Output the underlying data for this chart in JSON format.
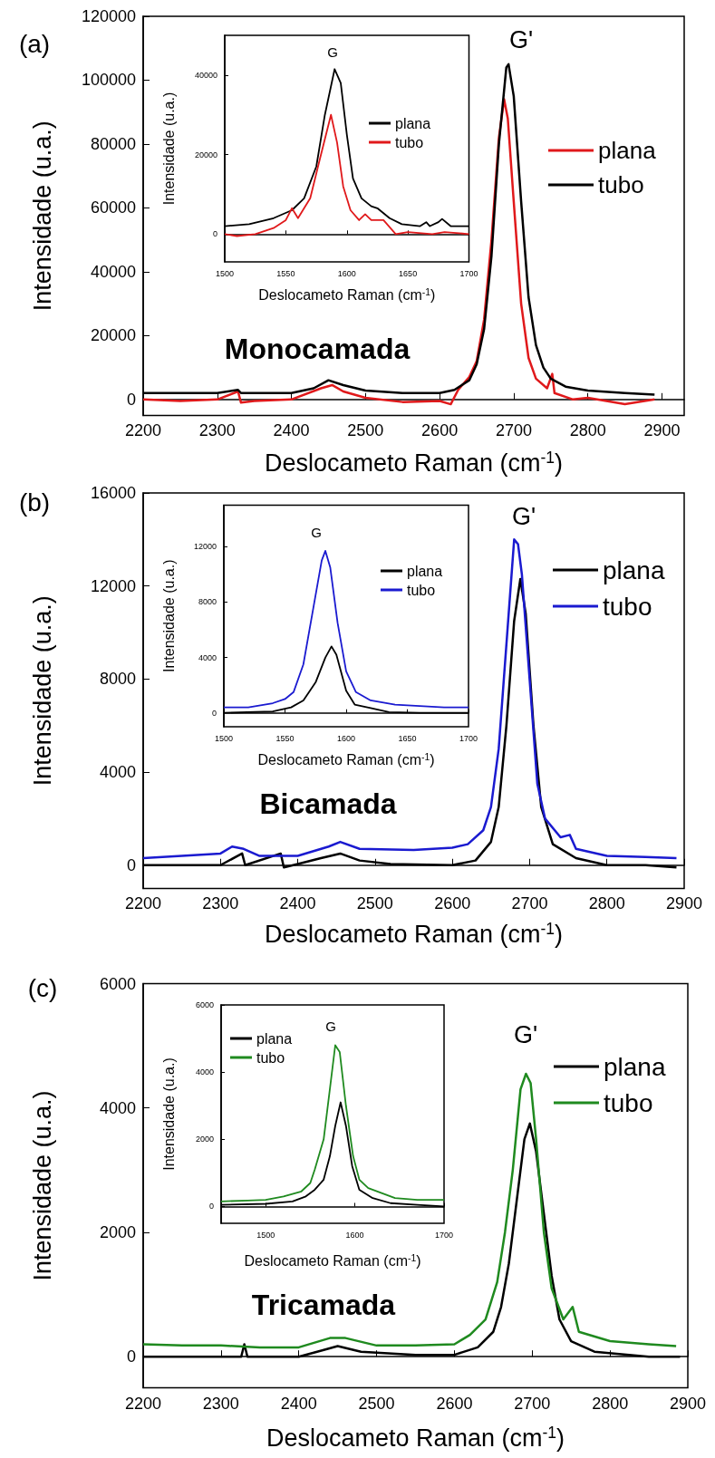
{
  "chart_data": [
    {
      "type": "line",
      "xlabel": "Deslocameto Raman (cm$^{-1}$)",
      "ylabel": "Intensidade (u.a.)",
      "xlim": [
        2200,
        2930
      ],
      "ylim": [
        -5000,
        120000
      ],
      "xticks": [
        2200,
        2300,
        2400,
        2500,
        2600,
        2700,
        2800,
        2900
      ],
      "yticks": [
        0,
        20000,
        40000,
        60000,
        80000,
        100000,
        120000
      ],
      "legend": "right",
      "annotations": [
        "(a)",
        "Monocamada",
        "G'"
      ],
      "series": [
        {
          "name": "plana",
          "color": "#e0191b",
          "x": [
            2200,
            2250,
            2300,
            2328,
            2332,
            2350,
            2400,
            2440,
            2455,
            2470,
            2500,
            2550,
            2600,
            2615,
            2625,
            2640,
            2650,
            2660,
            2670,
            2680,
            2687,
            2692,
            2700,
            2710,
            2720,
            2730,
            2745,
            2752,
            2755,
            2780,
            2800,
            2850,
            2890
          ],
          "values": [
            0,
            -500,
            0,
            2500,
            -1000,
            -500,
            0,
            3500,
            4500,
            2500,
            500,
            -800,
            -500,
            -1500,
            3000,
            7000,
            12000,
            25000,
            50000,
            82000,
            94000,
            88000,
            62000,
            30000,
            13000,
            6500,
            3500,
            8000,
            2000,
            0,
            500,
            -1500,
            0
          ]
        },
        {
          "name": "tubo",
          "color": "#000000",
          "x": [
            2200,
            2300,
            2328,
            2332,
            2400,
            2430,
            2450,
            2470,
            2500,
            2550,
            2600,
            2620,
            2640,
            2650,
            2660,
            2670,
            2680,
            2690,
            2693,
            2700,
            2710,
            2720,
            2730,
            2740,
            2750,
            2770,
            2800,
            2850,
            2890
          ],
          "values": [
            2000,
            2000,
            3000,
            2000,
            2000,
            3500,
            6000,
            4500,
            2800,
            2000,
            2000,
            3000,
            6000,
            11000,
            22000,
            45000,
            80000,
            104000,
            105000,
            95000,
            62000,
            32000,
            17000,
            10000,
            6500,
            4000,
            2800,
            2000,
            1500
          ]
        }
      ]
    },
    {
      "type": "line",
      "xlabel": "Deslocameto Raman (cm$^{-1}$)",
      "ylabel": "Intensidade (u.a.)",
      "xlim": [
        1500,
        1700
      ],
      "ylim": [
        -7000,
        50000
      ],
      "xticks": [
        1500,
        1550,
        1600,
        1650,
        1700
      ],
      "yticks": [
        0,
        20000,
        40000
      ],
      "legend": "right",
      "annotations": [
        "G"
      ],
      "series": [
        {
          "name": "plana",
          "color": "#000000",
          "x": [
            1500,
            1520,
            1540,
            1555,
            1565,
            1575,
            1582,
            1590,
            1595,
            1600,
            1605,
            1612,
            1620,
            1625,
            1635,
            1645,
            1660,
            1665,
            1668,
            1675,
            1678,
            1685,
            1700
          ],
          "values": [
            2000,
            2500,
            4000,
            6000,
            9000,
            17000,
            30000,
            41500,
            38000,
            25000,
            14000,
            9000,
            7000,
            6500,
            4000,
            2500,
            2000,
            3000,
            2000,
            3000,
            3800,
            2000,
            2000
          ]
        },
        {
          "name": "tubo",
          "color": "#e0191b",
          "x": [
            1500,
            1510,
            1525,
            1540,
            1550,
            1555,
            1560,
            1570,
            1578,
            1587,
            1592,
            1597,
            1603,
            1610,
            1615,
            1620,
            1630,
            1640,
            1650,
            1670,
            1680,
            1700
          ],
          "values": [
            0,
            -500,
            0,
            1500,
            3500,
            6500,
            4000,
            9000,
            19000,
            30000,
            23000,
            12000,
            6000,
            3500,
            5000,
            3500,
            3500,
            0,
            500,
            0,
            500,
            0
          ]
        }
      ]
    },
    {
      "type": "line",
      "xlabel": "Deslocameto Raman (cm$^{-1}$)",
      "ylabel": "Intensidade (u.a.)",
      "xlim": [
        2200,
        2900
      ],
      "ylim": [
        -1000,
        16000
      ],
      "xticks": [
        2200,
        2300,
        2400,
        2500,
        2600,
        2700,
        2800,
        2900
      ],
      "yticks": [
        0,
        4000,
        8000,
        12000,
        16000
      ],
      "legend": "right",
      "annotations": [
        "(b)",
        "Bicamada",
        "G'"
      ],
      "series": [
        {
          "name": "plana",
          "color": "#000000",
          "x": [
            2200,
            2300,
            2328,
            2332,
            2378,
            2382,
            2400,
            2430,
            2455,
            2480,
            2520,
            2600,
            2630,
            2650,
            2660,
            2670,
            2680,
            2688,
            2695,
            2705,
            2715,
            2730,
            2760,
            2800,
            2850,
            2890
          ],
          "values": [
            0,
            0,
            500,
            0,
            500,
            -100,
            50,
            300,
            500,
            200,
            50,
            0,
            200,
            1000,
            2500,
            6000,
            10500,
            12300,
            10800,
            6000,
            2500,
            900,
            300,
            0,
            0,
            -100
          ]
        },
        {
          "name": "tubo",
          "color": "#1a1ad0",
          "x": [
            2200,
            2250,
            2300,
            2315,
            2330,
            2350,
            2400,
            2440,
            2455,
            2480,
            2550,
            2600,
            2620,
            2640,
            2650,
            2660,
            2670,
            2680,
            2685,
            2690,
            2700,
            2710,
            2720,
            2740,
            2752,
            2760,
            2800,
            2850,
            2890
          ],
          "values": [
            300,
            400,
            500,
            800,
            700,
            400,
            400,
            800,
            1000,
            700,
            650,
            750,
            900,
            1500,
            2500,
            5000,
            9500,
            14000,
            13800,
            12500,
            8000,
            3500,
            2000,
            1200,
            1300,
            700,
            400,
            350,
            300
          ]
        }
      ]
    },
    {
      "type": "line",
      "xlabel": "Deslocameto Raman (cm$^{-1}$)",
      "ylabel": "Intensidade (u.a.)",
      "xlim": [
        1500,
        1700
      ],
      "ylim": [
        -1000,
        15000
      ],
      "xticks": [
        1500,
        1550,
        1600,
        1650,
        1700
      ],
      "yticks": [
        0,
        4000,
        8000,
        12000
      ],
      "legend": "right",
      "annotations": [
        "G"
      ],
      "series": [
        {
          "name": "plana",
          "color": "#000000",
          "x": [
            1500,
            1540,
            1555,
            1565,
            1575,
            1583,
            1588,
            1592,
            1600,
            1607,
            1620,
            1635,
            1660,
            1700
          ],
          "values": [
            0,
            100,
            400,
            900,
            2200,
            4000,
            4800,
            4200,
            1600,
            600,
            350,
            50,
            0,
            0
          ]
        },
        {
          "name": "tubo",
          "color": "#1a1ad0",
          "x": [
            1500,
            1520,
            1540,
            1550,
            1557,
            1565,
            1573,
            1580,
            1583,
            1587,
            1593,
            1600,
            1608,
            1620,
            1640,
            1660,
            1680,
            1700
          ],
          "values": [
            400,
            400,
            700,
            1000,
            1500,
            3500,
            7500,
            11000,
            11700,
            10500,
            6500,
            3000,
            1500,
            900,
            600,
            500,
            400,
            400
          ]
        }
      ]
    },
    {
      "type": "line",
      "xlabel": "Deslocameto Raman (cm$^{-1}$)",
      "ylabel": "Intensidade (u.a.)",
      "xlim": [
        2200,
        2900
      ],
      "ylim": [
        -500,
        6000
      ],
      "xticks": [
        2200,
        2300,
        2400,
        2500,
        2600,
        2700,
        2800,
        2900
      ],
      "yticks": [
        0,
        2000,
        4000,
        6000
      ],
      "legend": "right",
      "annotations": [
        "(c)",
        "Tricamada",
        "G'"
      ],
      "series": [
        {
          "name": "plana",
          "color": "#000000",
          "x": [
            2200,
            2300,
            2326,
            2330,
            2334,
            2400,
            2430,
            2450,
            2480,
            2550,
            2600,
            2630,
            2650,
            2660,
            2670,
            2680,
            2690,
            2697,
            2705,
            2715,
            2725,
            2735,
            2750,
            2780,
            2850,
            2890
          ],
          "values": [
            0,
            0,
            0,
            200,
            0,
            0,
            100,
            170,
            80,
            30,
            30,
            150,
            400,
            800,
            1500,
            2500,
            3500,
            3750,
            3300,
            2300,
            1300,
            600,
            250,
            80,
            0,
            0
          ]
        },
        {
          "name": "tubo",
          "color": "#1f8a1f",
          "x": [
            2200,
            2250,
            2300,
            2350,
            2400,
            2440,
            2460,
            2500,
            2550,
            2600,
            2620,
            2640,
            2655,
            2665,
            2675,
            2685,
            2692,
            2698,
            2705,
            2715,
            2725,
            2740,
            2752,
            2760,
            2800,
            2850,
            2885
          ],
          "values": [
            200,
            180,
            180,
            150,
            150,
            300,
            300,
            180,
            180,
            200,
            350,
            600,
            1200,
            2000,
            3000,
            4300,
            4550,
            4400,
            3500,
            2000,
            1100,
            600,
            800,
            400,
            250,
            200,
            170
          ]
        }
      ]
    },
    {
      "type": "line",
      "xlabel": "Deslocameto Raman (cm$^{-1}$)",
      "ylabel": "Intensidade (u.a.)",
      "xlim": [
        1450,
        1700
      ],
      "ylim": [
        -500,
        6000
      ],
      "xticks": [
        1500,
        1600,
        1700
      ],
      "yticks": [
        0,
        2000,
        4000,
        6000
      ],
      "legend": "top left",
      "annotations": [
        "G"
      ],
      "series": [
        {
          "name": "plana",
          "color": "#000000",
          "x": [
            1450,
            1500,
            1530,
            1545,
            1555,
            1565,
            1572,
            1578,
            1584,
            1590,
            1597,
            1605,
            1620,
            1640,
            1670,
            1700
          ],
          "values": [
            50,
            80,
            150,
            300,
            500,
            800,
            1500,
            2400,
            3100,
            2400,
            1200,
            500,
            250,
            100,
            50,
            0
          ]
        },
        {
          "name": "tubo",
          "color": "#1f8a1f",
          "x": [
            1450,
            1480,
            1500,
            1520,
            1540,
            1550,
            1555,
            1565,
            1572,
            1578,
            1583,
            1590,
            1598,
            1605,
            1615,
            1630,
            1645,
            1670,
            1700
          ],
          "values": [
            150,
            180,
            200,
            300,
            450,
            700,
            1100,
            2000,
            3500,
            4800,
            4600,
            3000,
            1500,
            800,
            550,
            400,
            250,
            200,
            200
          ]
        }
      ]
    }
  ]
}
